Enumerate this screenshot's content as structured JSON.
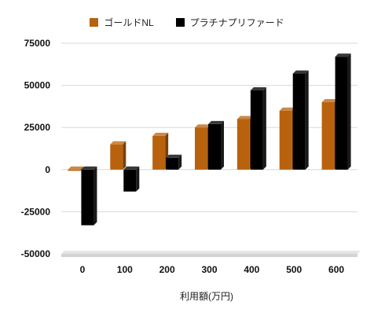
{
  "chart_data": {
    "type": "bar",
    "categories": [
      "0",
      "100",
      "200",
      "300",
      "400",
      "500",
      "600"
    ],
    "series": [
      {
        "name": "ゴールドNL",
        "color": "#b8620e",
        "values": [
          0,
          15000,
          20000,
          25000,
          30000,
          35000,
          40000
        ]
      },
      {
        "name": "プラチナプリファード",
        "color": "#000000",
        "values": [
          -33000,
          -13000,
          7000,
          27000,
          47000,
          57000,
          67000
        ]
      }
    ],
    "y_ticks": [
      "75000",
      "50000",
      "25000",
      "0",
      "-25000",
      "-50000"
    ],
    "ylim": [
      -50000,
      75000
    ],
    "xlabel": "利用額(万円)",
    "ylabel": "",
    "grid": true,
    "legend_position": "top-center",
    "style": "3d-bars"
  }
}
